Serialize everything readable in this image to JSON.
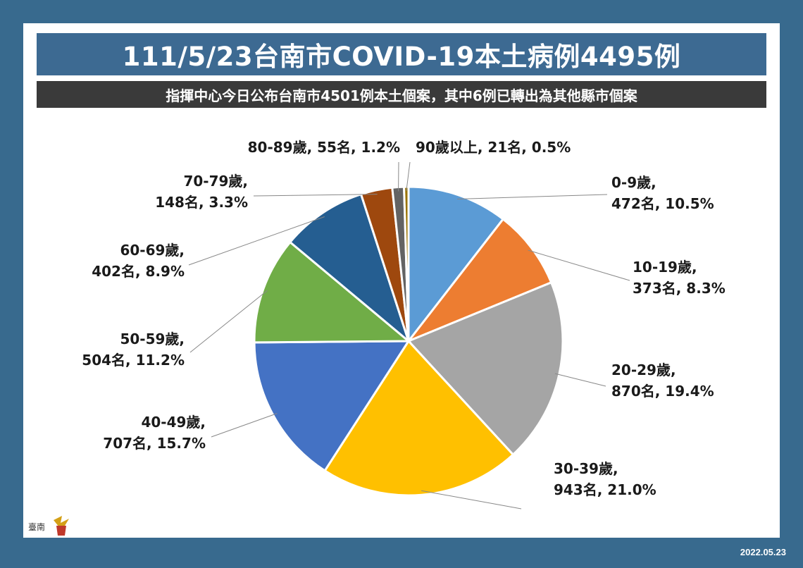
{
  "header": {
    "title": "111/5/23台南市COVID-19本土病例4495例",
    "subtitle": "指揮中心今日公布台南市4501例本土個案，其中6例已轉出為其他縣市個案"
  },
  "footer": {
    "date": "2022.05.23"
  },
  "logo": {
    "text": "臺南"
  },
  "chart_data": {
    "type": "pie",
    "start_angle_deg": 0,
    "direction": "clockwise",
    "slices": [
      {
        "label": "0-9歲",
        "count": 472,
        "percent": 10.5,
        "line1": "0-9歲,",
        "line2": "472名, 10.5%",
        "color": "#5b9bd5"
      },
      {
        "label": "10-19歲",
        "count": 373,
        "percent": 8.3,
        "line1": "10-19歲,",
        "line2": "373名, 8.3%",
        "color": "#ed7d31"
      },
      {
        "label": "20-29歲",
        "count": 870,
        "percent": 19.4,
        "line1": "20-29歲,",
        "line2": "870名, 19.4%",
        "color": "#a5a5a5"
      },
      {
        "label": "30-39歲",
        "count": 943,
        "percent": 21.0,
        "line1": "30-39歲,",
        "line2": "943名, 21.0%",
        "color": "#ffc000"
      },
      {
        "label": "40-49歲",
        "count": 707,
        "percent": 15.7,
        "line1": "40-49歲,",
        "line2": "707名, 15.7%",
        "color": "#4472c4"
      },
      {
        "label": "50-59歲",
        "count": 504,
        "percent": 11.2,
        "line1": "50-59歲,",
        "line2": "504名, 11.2%",
        "color": "#70ad47"
      },
      {
        "label": "60-69歲",
        "count": 402,
        "percent": 8.9,
        "line1": "60-69歲,",
        "line2": "402名, 8.9%",
        "color": "#255e91"
      },
      {
        "label": "70-79歲",
        "count": 148,
        "percent": 3.3,
        "line1": "70-79歲,",
        "line2": "148名, 3.3%",
        "color": "#9e480e"
      },
      {
        "label": "80-89歲",
        "count": 55,
        "percent": 1.2,
        "line1": "80-89歲, 55名, 1.2%",
        "line2": "",
        "color": "#636363"
      },
      {
        "label": "90歲以上",
        "count": 21,
        "percent": 0.5,
        "line1": "90歲以上, 21名, 0.5%",
        "line2": "",
        "color": "#997300"
      }
    ]
  }
}
